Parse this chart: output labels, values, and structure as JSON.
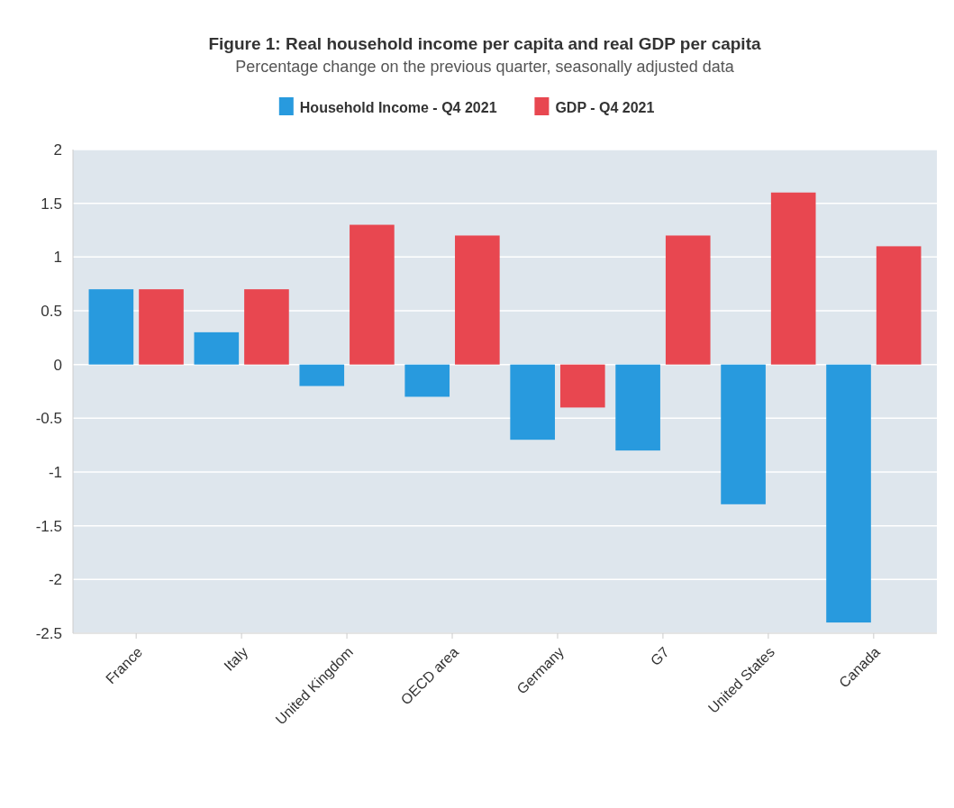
{
  "chart_data": {
    "type": "bar",
    "title": "Figure 1: Real household income per capita and real GDP per capita",
    "subtitle": "Percentage change on the previous quarter, seasonally adjusted data",
    "categories": [
      "France",
      "Italy",
      "United Kingdom",
      "OECD area",
      "Germany",
      "G7",
      "United States",
      "Canada"
    ],
    "series": [
      {
        "name": "Household Income - Q4 2021",
        "color": "#289ade",
        "values": [
          0.7,
          0.3,
          -0.2,
          -0.3,
          -0.7,
          -0.8,
          -1.3,
          -2.4
        ]
      },
      {
        "name": "GDP - Q4 2021",
        "color": "#e84750",
        "values": [
          0.7,
          0.7,
          1.3,
          1.2,
          -0.4,
          1.2,
          1.6,
          1.1
        ]
      }
    ],
    "ylim": [
      -2.5,
      2
    ],
    "yticks": [
      -2.5,
      -2,
      -1.5,
      -1,
      -0.5,
      0,
      0.5,
      1,
      1.5,
      2
    ],
    "grid": "y",
    "legend": "top"
  }
}
